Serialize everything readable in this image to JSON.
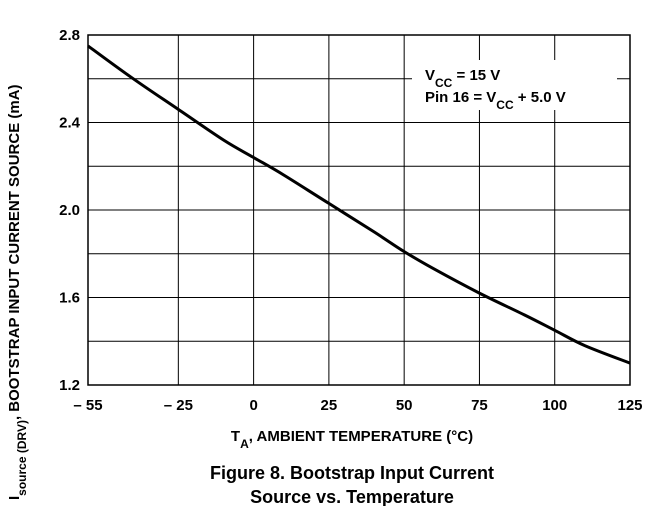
{
  "chart_data": {
    "type": "line",
    "title": "",
    "xlabel": {
      "main": "T",
      "sub": "A",
      "rest": ", AMBIENT TEMPERATURE (°C)"
    },
    "ylabel": {
      "main": "I",
      "sub": "source (DRV)",
      "rest": ", BOOTSTRAP INPUT CURRENT SOURCE (mA)"
    },
    "xlim": [
      -55,
      125
    ],
    "ylim": [
      1.2,
      2.8
    ],
    "x_ticks": [
      -55,
      -25,
      0,
      25,
      50,
      75,
      100,
      125
    ],
    "x_tick_labels": [
      "– 55",
      "– 25",
      "0",
      "25",
      "50",
      "75",
      "100",
      "125"
    ],
    "y_ticks": [
      1.2,
      1.6,
      2.0,
      2.4,
      2.8
    ],
    "y_tick_labels": [
      "1.2",
      "1.6",
      "2.0",
      "2.4",
      "2.8"
    ],
    "grid": true,
    "series": [
      {
        "x": [
          -55,
          -40,
          -25,
          -10,
          0,
          10,
          25,
          40,
          50,
          60,
          75,
          90,
          100,
          110,
          125
        ],
        "y": [
          2.75,
          2.6,
          2.46,
          2.32,
          2.24,
          2.16,
          2.03,
          1.9,
          1.81,
          1.73,
          1.62,
          1.52,
          1.45,
          1.38,
          1.3
        ]
      }
    ],
    "annotation": {
      "line1": {
        "pre": "V",
        "sub": "CC",
        "post": " = 15 V"
      },
      "line2": {
        "pre": "Pin 16 = V",
        "sub": "CC",
        "post": " + 5.0 V"
      }
    }
  },
  "caption": {
    "line1": "Figure 8. Bootstrap Input Current",
    "line2": "Source vs. Temperature"
  }
}
